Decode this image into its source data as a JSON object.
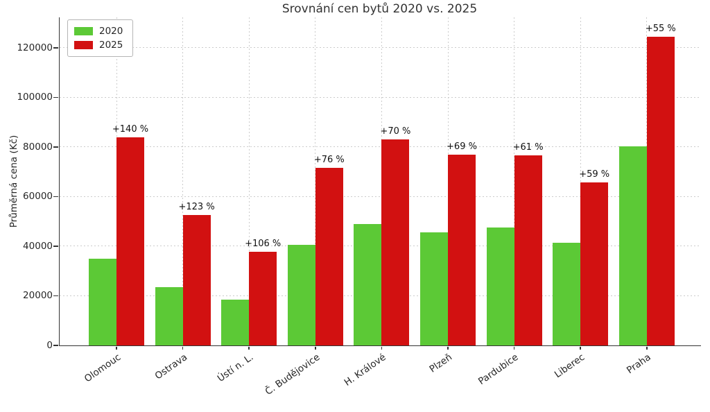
{
  "chart_data": {
    "type": "bar",
    "title": "Srovnání cen bytů 2020 vs. 2025",
    "ylabel": "Průměrná cena (Kč)",
    "xlabel": "",
    "categories": [
      "Olomouc",
      "Ostrava",
      "Ústí n. L.",
      "Č. Budějovice",
      "H. Králové",
      "Plzeň",
      "Pardubice",
      "Liberec",
      "Praha"
    ],
    "series": [
      {
        "name": "2020",
        "color": "#5cc936",
        "values": [
          35000,
          23600,
          18400,
          40700,
          48900,
          45500,
          47600,
          41300,
          80300
        ]
      },
      {
        "name": "2025",
        "color": "#d21111",
        "values": [
          84000,
          52600,
          37900,
          71600,
          83100,
          76900,
          76600,
          65700,
          124500
        ]
      }
    ],
    "annotations": [
      "+140 %",
      "+123 %",
      "+106 %",
      "+76 %",
      "+70 %",
      "+69 %",
      "+61 %",
      "+59 %",
      "+55 %"
    ],
    "yticks": [
      0,
      20000,
      40000,
      60000,
      80000,
      100000,
      120000
    ],
    "ylim": [
      0,
      132300
    ],
    "grid": true,
    "grid_style": "dotted",
    "legend_position": "upper left",
    "colors": {
      "grid": "#cbcbcb",
      "axis": "#333333",
      "text": "#262626"
    }
  }
}
